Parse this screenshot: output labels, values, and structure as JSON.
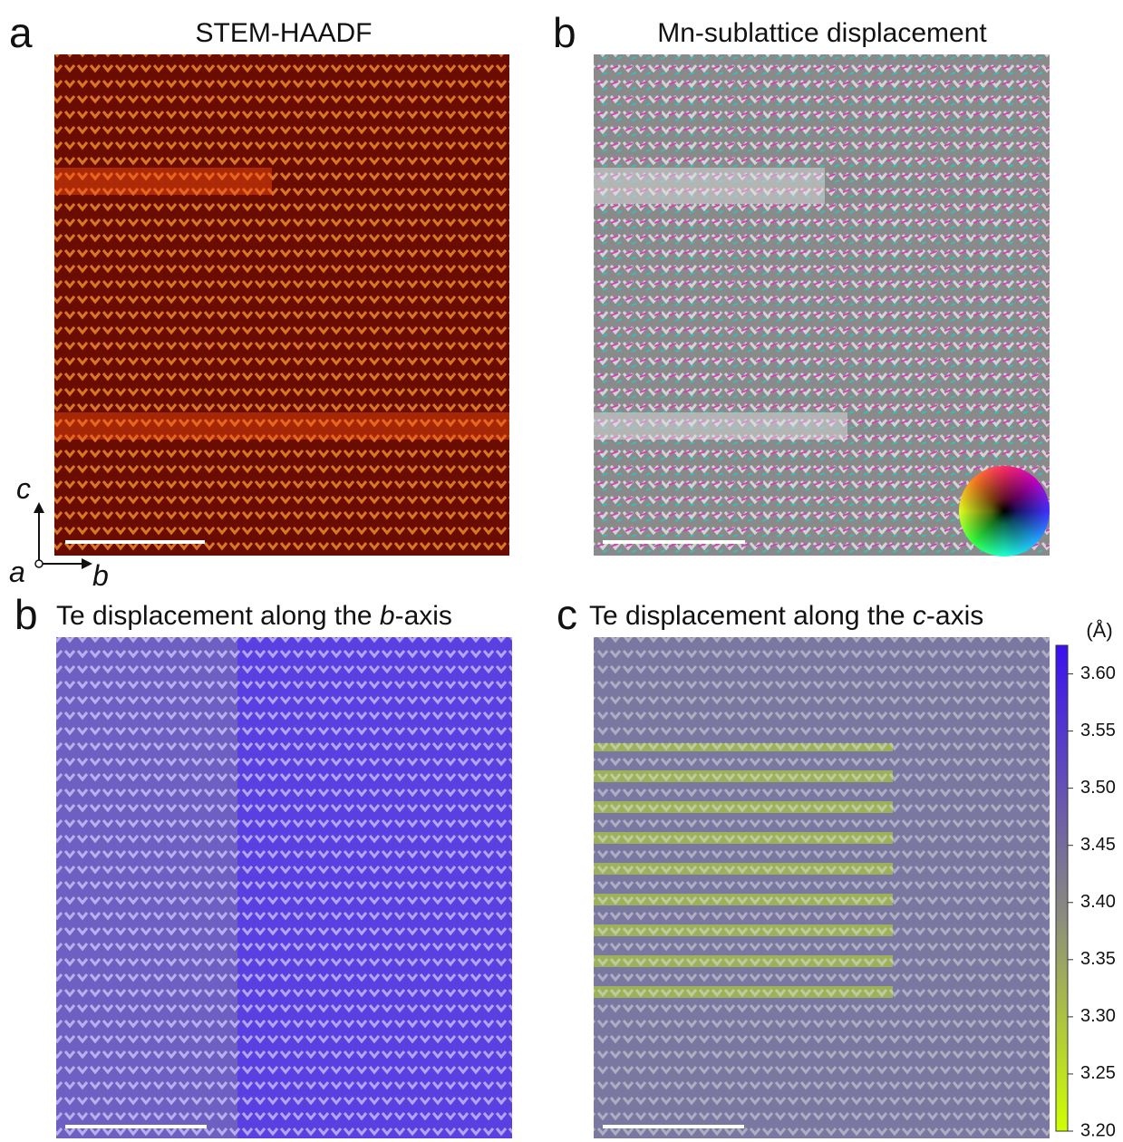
{
  "panels": [
    {
      "label": "a",
      "title": "STEM-HAADF"
    },
    {
      "label": "b",
      "title": "Mn-sublattice displacement"
    },
    {
      "label": "b",
      "title": [
        "Te displacement along the ",
        "b",
        "-axis"
      ]
    },
    {
      "label": "c",
      "title": [
        "Te displacement along the ",
        "c",
        "-axis"
      ]
    }
  ],
  "axes": {
    "up": "c",
    "out": "a",
    "right": "b"
  },
  "colorbar": {
    "unit": "(Å)",
    "lim": [
      3.2,
      3.625
    ],
    "ticks": [
      {
        "value": 3.6,
        "label": "3.60"
      },
      {
        "value": 3.55,
        "label": "3.55"
      },
      {
        "value": 3.5,
        "label": "3.50"
      },
      {
        "value": 3.45,
        "label": "3.45"
      },
      {
        "value": 3.4,
        "label": "3.40"
      },
      {
        "value": 3.35,
        "label": "3.35"
      },
      {
        "value": 3.3,
        "label": "3.30"
      },
      {
        "value": 3.25,
        "label": "3.25"
      },
      {
        "value": 3.2,
        "label": "3.20"
      }
    ]
  }
}
